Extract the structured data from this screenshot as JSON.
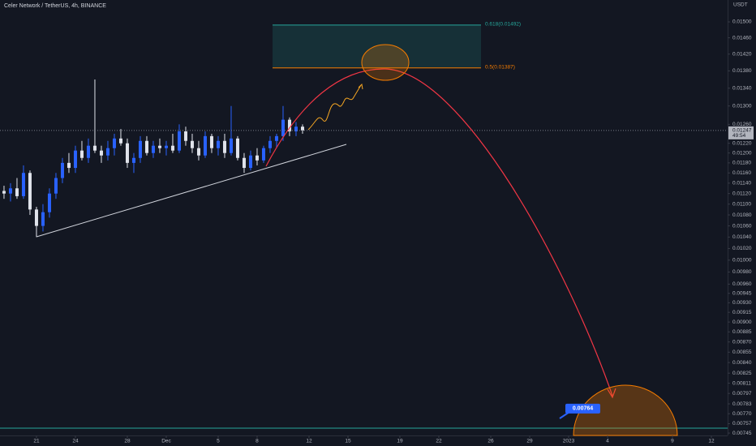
{
  "chart_data": {
    "type": "candlestick",
    "title": "Celer Network / TetherUS, 4h, BINANCE",
    "y_axis_label": "USDT",
    "log_scale": true,
    "up_color": "#2962ff",
    "down_color": "#e0e3eb",
    "x": [
      -2.5,
      -2,
      -1.5,
      -1,
      -0.5,
      0,
      0.5,
      1,
      1.5,
      2,
      2.5,
      3,
      3.5,
      4,
      4.5,
      5,
      5.5,
      6,
      6.5,
      7,
      7.5,
      8,
      8.5,
      9,
      9.5,
      10,
      10.5,
      11,
      11.5,
      12,
      12.5,
      13,
      13.5,
      14,
      14.5,
      15,
      15.5,
      16,
      16.5,
      17,
      17.5,
      18,
      18.5,
      19,
      19.5,
      20,
      20.5
    ],
    "open": [
      0.01125,
      0.0112,
      0.0113,
      0.01115,
      0.0116,
      0.0109,
      0.0106,
      0.01085,
      0.0112,
      0.0115,
      0.0118,
      0.0117,
      0.01205,
      0.0119,
      0.01215,
      0.01205,
      0.01195,
      0.0121,
      0.0123,
      0.0122,
      0.0118,
      0.0119,
      0.01225,
      0.012,
      0.01215,
      0.0121,
      0.01215,
      0.01205,
      0.01245,
      0.01225,
      0.0121,
      0.01195,
      0.01235,
      0.0121,
      0.01225,
      0.012,
      0.0123,
      0.0119,
      0.0117,
      0.01195,
      0.01185,
      0.0121,
      0.01225,
      0.01235,
      0.0127,
      0.01245,
      0.01255
    ],
    "high": [
      0.01135,
      0.0114,
      0.0115,
      0.01175,
      0.01165,
      0.01095,
      0.011,
      0.0113,
      0.0116,
      0.0119,
      0.012,
      0.01215,
      0.01225,
      0.0123,
      0.0136,
      0.01215,
      0.01225,
      0.0124,
      0.0125,
      0.0123,
      0.012,
      0.01235,
      0.01235,
      0.01225,
      0.0123,
      0.01225,
      0.0124,
      0.0126,
      0.01255,
      0.0124,
      0.01225,
      0.01245,
      0.0124,
      0.01235,
      0.0124,
      0.013,
      0.01235,
      0.012,
      0.01205,
      0.0121,
      0.01215,
      0.01235,
      0.0124,
      0.013,
      0.01275,
      0.01265,
      0.0126
    ],
    "low": [
      0.0111,
      0.01105,
      0.0111,
      0.0111,
      0.0108,
      0.0104,
      0.0105,
      0.01075,
      0.0111,
      0.0114,
      0.0116,
      0.0116,
      0.01185,
      0.0118,
      0.012,
      0.0118,
      0.01185,
      0.01195,
      0.01215,
      0.0117,
      0.0116,
      0.0118,
      0.01195,
      0.0119,
      0.012,
      0.01195,
      0.012,
      0.012,
      0.01215,
      0.012,
      0.01185,
      0.0119,
      0.012,
      0.01195,
      0.0119,
      0.01195,
      0.01185,
      0.0116,
      0.01165,
      0.01175,
      0.0118,
      0.012,
      0.0121,
      0.01225,
      0.01235,
      0.01235,
      0.0124
    ],
    "close": [
      0.0112,
      0.0113,
      0.01115,
      0.0116,
      0.0109,
      0.0106,
      0.01085,
      0.0112,
      0.0115,
      0.0118,
      0.0117,
      0.01205,
      0.0119,
      0.01215,
      0.01205,
      0.01195,
      0.0121,
      0.0123,
      0.0122,
      0.0118,
      0.0119,
      0.01225,
      0.012,
      0.01215,
      0.0121,
      0.01215,
      0.01205,
      0.01245,
      0.01225,
      0.0121,
      0.01195,
      0.01235,
      0.0121,
      0.01225,
      0.012,
      0.0123,
      0.0119,
      0.0117,
      0.01195,
      0.01185,
      0.0121,
      0.01225,
      0.01235,
      0.0127,
      0.01245,
      0.01255,
      0.01247
    ],
    "xlim": [
      -2.81,
      53.25
    ],
    "xticks": [
      {
        "value": 0,
        "label": "21"
      },
      {
        "value": 3,
        "label": "24"
      },
      {
        "value": 7,
        "label": "28"
      },
      {
        "value": 10,
        "label": "Dec"
      },
      {
        "value": 14,
        "label": "5"
      },
      {
        "value": 17,
        "label": "8"
      },
      {
        "value": 21,
        "label": "12"
      },
      {
        "value": 24,
        "label": "15"
      },
      {
        "value": 28,
        "label": "19"
      },
      {
        "value": 31,
        "label": "22"
      },
      {
        "value": 35,
        "label": "26"
      },
      {
        "value": 38,
        "label": "29"
      },
      {
        "value": 41,
        "label": "2023"
      },
      {
        "value": 44,
        "label": "4"
      },
      {
        "value": 49,
        "label": "9"
      },
      {
        "value": 52,
        "label": "12"
      }
    ],
    "ylim": [
      0.00742,
      0.01557
    ],
    "yticks": [
      {
        "value": 0.015,
        "label": "0.01500"
      },
      {
        "value": 0.0146,
        "label": "0.01460"
      },
      {
        "value": 0.0142,
        "label": "0.01420"
      },
      {
        "value": 0.0138,
        "label": "0.01380"
      },
      {
        "value": 0.0134,
        "label": "0.01340"
      },
      {
        "value": 0.013,
        "label": "0.01300"
      },
      {
        "value": 0.0126,
        "label": "0.01260"
      },
      {
        "value": 0.0122,
        "label": "0.01220"
      },
      {
        "value": 0.012,
        "label": "0.01200"
      },
      {
        "value": 0.0118,
        "label": "0.01180"
      },
      {
        "value": 0.0116,
        "label": "0.01160"
      },
      {
        "value": 0.0114,
        "label": "0.01140"
      },
      {
        "value": 0.0112,
        "label": "0.01120"
      },
      {
        "value": 0.011,
        "label": "0.01100"
      },
      {
        "value": 0.0108,
        "label": "0.01080"
      },
      {
        "value": 0.0106,
        "label": "0.01060"
      },
      {
        "value": 0.0104,
        "label": "0.01040"
      },
      {
        "value": 0.0102,
        "label": "0.01020"
      },
      {
        "value": 0.01,
        "label": "0.01000"
      },
      {
        "value": 0.0098,
        "label": "0.00980"
      },
      {
        "value": 0.0096,
        "label": "0.00960"
      },
      {
        "value": 0.00945,
        "label": "0.00945"
      },
      {
        "value": 0.0093,
        "label": "0.00930"
      },
      {
        "value": 0.00915,
        "label": "0.00915"
      },
      {
        "value": 0.009,
        "label": "0.00900"
      },
      {
        "value": 0.00885,
        "label": "0.00885"
      },
      {
        "value": 0.0087,
        "label": "0.00870"
      },
      {
        "value": 0.00855,
        "label": "0.00855"
      },
      {
        "value": 0.0084,
        "label": "0.00840"
      },
      {
        "value": 0.00825,
        "label": "0.00825"
      },
      {
        "value": 0.00811,
        "label": "0.00811"
      },
      {
        "value": 0.00797,
        "label": "0.00797"
      },
      {
        "value": 0.00783,
        "label": "0.00783"
      },
      {
        "value": 0.0077,
        "label": "0.00770"
      },
      {
        "value": 0.00757,
        "label": "0.00757"
      },
      {
        "value": 0.00745,
        "label": "0.00745"
      }
    ],
    "grid": false,
    "fib_levels": [
      {
        "value": 0.01492,
        "label": "0.618(0.01492)",
        "color": "#26a69a"
      },
      {
        "value": 0.01387,
        "label": "0.5(0.01387)",
        "color": "#f57c00"
      }
    ],
    "last_price": 0.01247,
    "countdown": "49:54",
    "target_price": 0.00764
  }
}
